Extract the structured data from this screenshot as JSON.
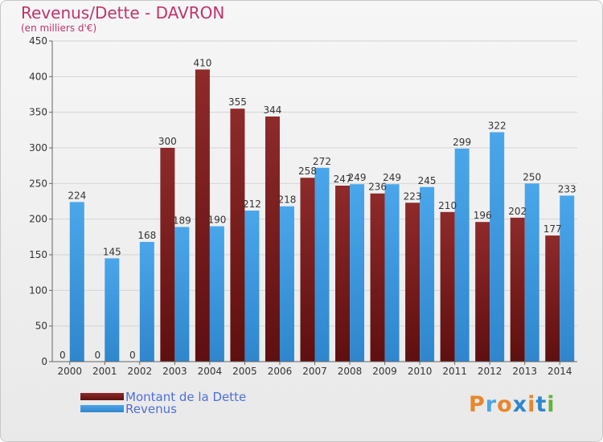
{
  "title": "Revenus/Dette - DAVRON",
  "subtitle": "(en milliers d'€)",
  "logo": "Proxiti",
  "colors": {
    "dette": "#7a1c1c",
    "revenus": "#3a96dd",
    "text_accent": "#c0336b",
    "legend_text": "#4f6fd8"
  },
  "chart_data": {
    "type": "bar",
    "categories": [
      "2000",
      "2001",
      "2002",
      "2003",
      "2004",
      "2005",
      "2006",
      "2007",
      "2008",
      "2009",
      "2010",
      "2011",
      "2012",
      "2013",
      "2014"
    ],
    "series": [
      {
        "name": "Montant de la Dette",
        "values": [
          0,
          0,
          0,
          300,
          410,
          355,
          344,
          258,
          247,
          236,
          223,
          210,
          196,
          202,
          177
        ]
      },
      {
        "name": "Revenus",
        "values": [
          224,
          145,
          168,
          189,
          190,
          212,
          218,
          272,
          249,
          249,
          245,
          299,
          322,
          250,
          233
        ]
      }
    ],
    "ylim": [
      0,
      450
    ],
    "yticks": [
      "0",
      "50",
      "100",
      "150",
      "200",
      "250",
      "300",
      "350",
      "400",
      "450"
    ],
    "grid": true,
    "legend": "bottom-left"
  }
}
